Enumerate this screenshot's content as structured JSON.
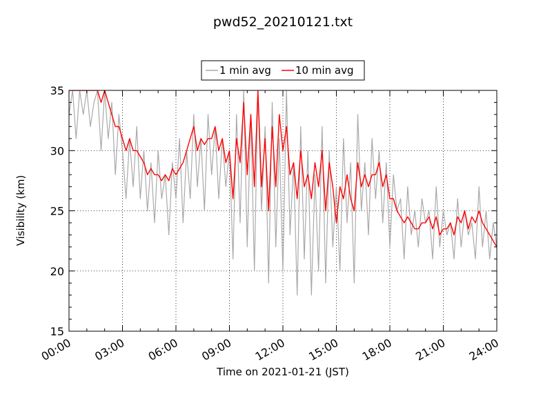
{
  "chart_data": {
    "type": "line",
    "title": "pwd52_20210121.txt",
    "xlabel": "Time on 2021-01-21 (JST)",
    "ylabel": "Visibility (km)",
    "x_unit": "hours",
    "xlim": [
      0,
      24
    ],
    "ylim": [
      15,
      35
    ],
    "x_ticks": [
      0,
      3,
      6,
      9,
      12,
      15,
      18,
      21,
      24
    ],
    "x_tick_labels": [
      "00:00",
      "03:00",
      "06:00",
      "09:00",
      "12:00",
      "15:00",
      "18:00",
      "21:00",
      "24:00"
    ],
    "y_ticks": [
      15,
      20,
      25,
      30,
      35
    ],
    "y_tick_labels": [
      "15",
      "20",
      "25",
      "30",
      "35"
    ],
    "grid": true,
    "legend_position": "top-center",
    "colors": {
      "one_min": "#a9a9a9",
      "ten_min": "#ff0000"
    },
    "series": [
      {
        "name": "1 min avg",
        "color": "#a9a9a9",
        "x": [
          0,
          0.2,
          0.4,
          0.6,
          0.8,
          1,
          1.2,
          1.4,
          1.6,
          1.8,
          2,
          2.2,
          2.4,
          2.6,
          2.8,
          3,
          3.2,
          3.4,
          3.6,
          3.8,
          4,
          4.2,
          4.4,
          4.6,
          4.8,
          5,
          5.2,
          5.4,
          5.6,
          5.8,
          6,
          6.2,
          6.4,
          6.6,
          6.8,
          7,
          7.2,
          7.4,
          7.6,
          7.8,
          8,
          8.2,
          8.4,
          8.6,
          8.8,
          9,
          9.2,
          9.4,
          9.6,
          9.8,
          10,
          10.2,
          10.4,
          10.6,
          10.8,
          11,
          11.2,
          11.4,
          11.6,
          11.8,
          12,
          12.2,
          12.4,
          12.6,
          12.8,
          13,
          13.2,
          13.4,
          13.6,
          13.8,
          14,
          14.2,
          14.4,
          14.6,
          14.8,
          15,
          15.2,
          15.4,
          15.6,
          15.8,
          16,
          16.2,
          16.4,
          16.6,
          16.8,
          17,
          17.2,
          17.4,
          17.6,
          17.8,
          18,
          18.2,
          18.4,
          18.6,
          18.8,
          19,
          19.2,
          19.4,
          19.6,
          19.8,
          20,
          20.2,
          20.4,
          20.6,
          20.8,
          21,
          21.2,
          21.4,
          21.6,
          21.8,
          22,
          22.2,
          22.4,
          22.6,
          22.8,
          23,
          23.2,
          23.4,
          23.6,
          23.8,
          24
        ],
        "values": [
          33,
          35,
          31,
          35,
          33,
          35,
          32,
          34,
          35,
          30,
          35,
          31,
          34,
          28,
          33,
          30,
          26,
          31,
          27,
          32,
          26,
          30,
          25,
          29,
          24,
          30,
          26,
          28,
          23,
          29,
          26,
          31,
          24,
          30,
          26,
          33,
          27,
          31,
          25,
          33,
          28,
          32,
          26,
          31,
          27,
          30,
          21,
          33,
          24,
          35,
          22,
          33,
          20,
          35,
          25,
          32,
          19,
          34,
          22,
          31,
          20,
          35,
          23,
          29,
          18,
          32,
          21,
          30,
          18,
          28,
          20,
          32,
          19,
          30,
          22,
          27,
          20,
          31,
          24,
          29,
          19,
          33,
          25,
          29,
          23,
          31,
          26,
          30,
          24,
          29,
          22,
          28,
          25,
          26,
          21,
          27,
          23,
          25,
          22,
          26,
          24,
          25,
          21,
          27,
          22,
          25,
          23,
          24,
          21,
          26,
          22,
          25,
          23,
          24,
          21,
          27,
          22,
          25,
          21,
          24,
          22
        ]
      },
      {
        "name": "10 min avg",
        "color": "#ff0000",
        "x": [
          0,
          0.2,
          0.4,
          0.6,
          0.8,
          1,
          1.2,
          1.4,
          1.6,
          1.8,
          2,
          2.2,
          2.4,
          2.6,
          2.8,
          3,
          3.2,
          3.4,
          3.6,
          3.8,
          4,
          4.2,
          4.4,
          4.6,
          4.8,
          5,
          5.2,
          5.4,
          5.6,
          5.8,
          6,
          6.2,
          6.4,
          6.6,
          6.8,
          7,
          7.2,
          7.4,
          7.6,
          7.8,
          8,
          8.2,
          8.4,
          8.6,
          8.8,
          9,
          9.2,
          9.4,
          9.6,
          9.8,
          10,
          10.2,
          10.4,
          10.6,
          10.8,
          11,
          11.2,
          11.4,
          11.6,
          11.8,
          12,
          12.2,
          12.4,
          12.6,
          12.8,
          13,
          13.2,
          13.4,
          13.6,
          13.8,
          14,
          14.2,
          14.4,
          14.6,
          14.8,
          15,
          15.2,
          15.4,
          15.6,
          15.8,
          16,
          16.2,
          16.4,
          16.6,
          16.8,
          17,
          17.2,
          17.4,
          17.6,
          17.8,
          18,
          18.2,
          18.4,
          18.6,
          18.8,
          19,
          19.2,
          19.4,
          19.6,
          19.8,
          20,
          20.2,
          20.4,
          20.6,
          20.8,
          21,
          21.2,
          21.4,
          21.6,
          21.8,
          22,
          22.2,
          22.4,
          22.6,
          22.8,
          23,
          23.2,
          23.4,
          23.6,
          23.8,
          24
        ],
        "values": [
          35,
          35,
          35,
          35,
          35,
          35,
          35,
          35,
          35,
          34,
          35,
          34,
          33,
          32,
          32,
          31,
          30,
          31,
          30,
          30,
          29.5,
          29,
          28,
          28.5,
          28,
          28,
          27.5,
          28,
          27.5,
          28.5,
          28,
          28.5,
          29,
          30,
          31,
          32,
          30,
          31,
          30.5,
          31,
          31,
          32,
          30,
          31,
          29,
          30,
          26,
          31,
          29,
          34,
          28,
          33,
          27,
          35,
          27,
          31,
          25,
          32,
          27,
          33,
          30,
          32,
          28,
          29,
          26,
          30,
          27,
          28,
          26,
          29,
          27,
          30,
          25,
          29,
          27,
          24,
          27,
          26,
          28,
          26,
          25,
          29,
          27,
          28,
          27,
          28,
          28,
          29,
          27,
          28,
          26,
          26,
          25,
          24.5,
          24,
          24.5,
          24,
          23.5,
          23.5,
          24,
          24,
          24.5,
          23.5,
          24.5,
          23,
          23.5,
          23.5,
          24,
          23,
          24.5,
          24,
          25,
          23.5,
          24.5,
          24,
          25,
          24,
          23.5,
          23,
          22.5,
          22
        ]
      }
    ]
  }
}
